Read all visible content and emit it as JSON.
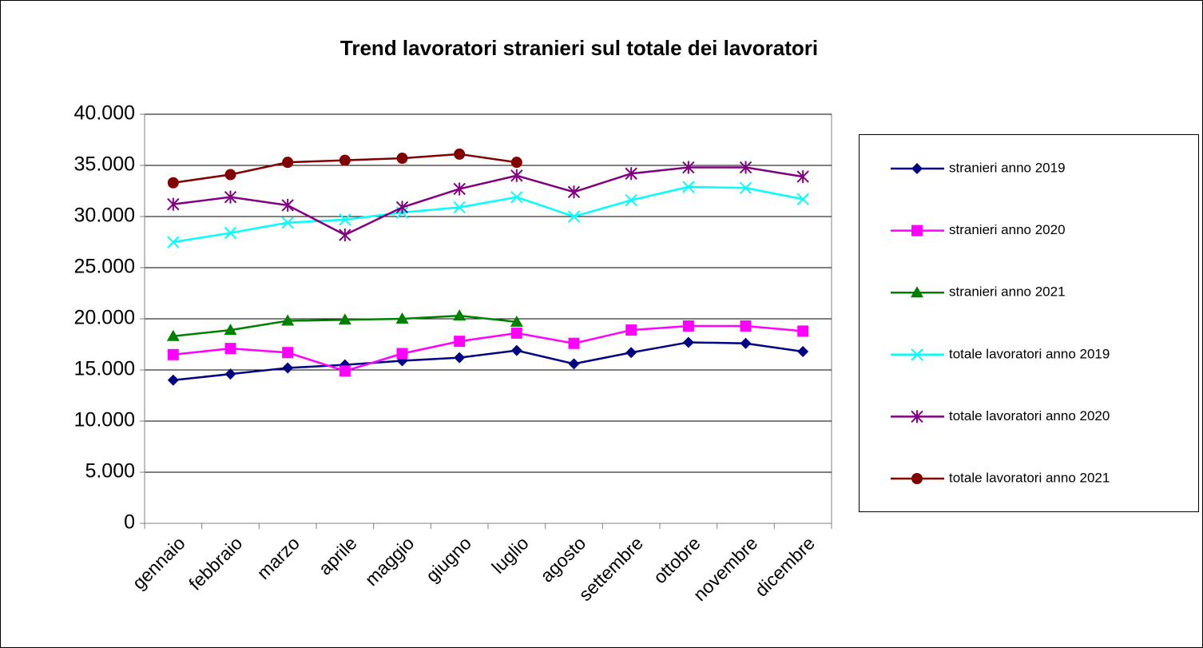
{
  "chart_data": {
    "type": "line",
    "title": "Trend lavoratori stranieri sul totale dei lavoratori",
    "categories": [
      "gennaio",
      "febbraio",
      "marzo",
      "aprile",
      "maggio",
      "giugno",
      "luglio",
      "agosto",
      "settembre",
      "ottobre",
      "novembre",
      "dicembre"
    ],
    "ylim": [
      0,
      40000
    ],
    "yticks": [
      0,
      {
        "value": 5000,
        "label": "5.000"
      },
      {
        "value": 10000,
        "label": "10.000"
      },
      {
        "value": 15000,
        "label": "15.000"
      },
      {
        "value": 20000,
        "label": "20.000"
      },
      {
        "value": 25000,
        "label": "25.000"
      },
      {
        "value": 30000,
        "label": "30.000"
      },
      {
        "value": 35000,
        "label": "35.000"
      },
      {
        "value": 40000,
        "label": "40.000"
      }
    ],
    "grid": true,
    "legend": "right",
    "series": [
      {
        "name": "stranieri anno 2019",
        "color": "#000080",
        "marker": "diamond",
        "values": [
          14000,
          14600,
          15200,
          15500,
          15900,
          16200,
          16900,
          15600,
          16700,
          17700,
          17600,
          16800
        ]
      },
      {
        "name": "stranieri anno 2020",
        "color": "#ff00ff",
        "marker": "square",
        "values": [
          16500,
          17100,
          16700,
          14900,
          16600,
          17800,
          18600,
          17600,
          18900,
          19300,
          19300,
          18800
        ]
      },
      {
        "name": "stranieri anno 2021",
        "color": "#008000",
        "marker": "triangle",
        "values": [
          18300,
          18900,
          19800,
          19900,
          20000,
          20300,
          19700,
          null,
          null,
          null,
          null,
          null
        ]
      },
      {
        "name": "totale lavoratori anno 2019",
        "color": "#00ffff",
        "marker": "x",
        "values": [
          27500,
          28400,
          29400,
          29700,
          30400,
          30900,
          31900,
          30000,
          31600,
          32900,
          32800,
          31700
        ]
      },
      {
        "name": "totale lavoratori anno 2020",
        "color": "#800080",
        "marker": "star",
        "values": [
          31200,
          31900,
          31100,
          28200,
          30900,
          32700,
          34000,
          32400,
          34200,
          34800,
          34800,
          33900
        ]
      },
      {
        "name": "totale lavoratori anno 2021",
        "color": "#800000",
        "marker": "circle",
        "values": [
          33300,
          34100,
          35300,
          35500,
          35700,
          36100,
          35300,
          null,
          null,
          null,
          null,
          null
        ]
      }
    ]
  }
}
